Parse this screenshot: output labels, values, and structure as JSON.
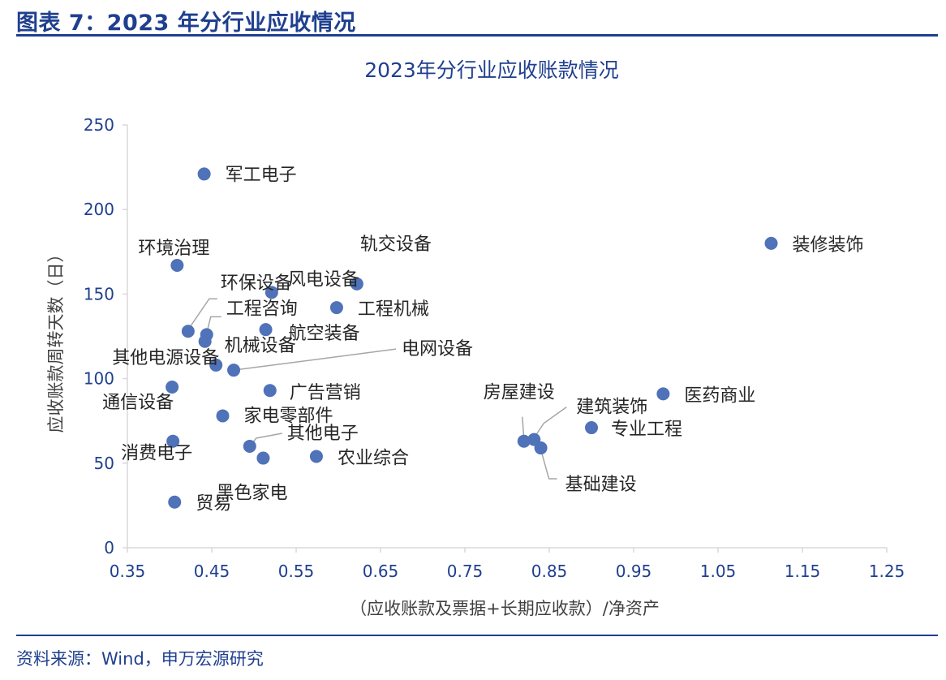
{
  "figure_title": "图表 7：2023 年分行业应收情况",
  "source": "资料来源：Wind，申万宏源研究",
  "colors": {
    "accent": "#1f3f8f",
    "marker": "#4f72b8",
    "leader": "#a6a6a6"
  },
  "chart_data": {
    "type": "scatter",
    "title": "2023年分行业应收账款情况",
    "xlabel": "（应收账款及票据+长期应收款）/净资产",
    "ylabel": "应收账款周转天数（日）",
    "xlim": [
      0.35,
      1.25
    ],
    "ylim": [
      0,
      250
    ],
    "xticks": [
      "0.35",
      "0.45",
      "0.55",
      "0.65",
      "0.75",
      "0.85",
      "0.95",
      "1.05",
      "1.15",
      "1.25"
    ],
    "yticks": [
      "0",
      "50",
      "100",
      "150",
      "200",
      "250"
    ],
    "grid": false,
    "points": [
      {
        "label": "军工电子",
        "x": 0.441,
        "y": 221
      },
      {
        "label": "装修装饰",
        "x": 1.113,
        "y": 180
      },
      {
        "label": "环境治理",
        "x": 0.409,
        "y": 167
      },
      {
        "label": "轨交设备",
        "x": 0.622,
        "y": 156
      },
      {
        "label": "风电设备",
        "x": 0.521,
        "y": 151
      },
      {
        "label": "工程机械",
        "x": 0.598,
        "y": 142
      },
      {
        "label": "环保设备",
        "x": 0.422,
        "y": 128
      },
      {
        "label": "工程咨询",
        "x": 0.444,
        "y": 126
      },
      {
        "label": "航空装备",
        "x": 0.514,
        "y": 129
      },
      {
        "label": "机械设备",
        "x": 0.442,
        "y": 122
      },
      {
        "label": "其他电源设备",
        "x": 0.455,
        "y": 108
      },
      {
        "label": "电网设备",
        "x": 0.476,
        "y": 105
      },
      {
        "label": "广告营销",
        "x": 0.519,
        "y": 93
      },
      {
        "label": "通信设备",
        "x": 0.403,
        "y": 95
      },
      {
        "label": "家电零部件",
        "x": 0.463,
        "y": 78
      },
      {
        "label": "医药商业",
        "x": 0.985,
        "y": 91
      },
      {
        "label": "专业工程",
        "x": 0.9,
        "y": 71
      },
      {
        "label": "房屋建设",
        "x": 0.82,
        "y": 63
      },
      {
        "label": "建筑装饰",
        "x": 0.832,
        "y": 64
      },
      {
        "label": "基础建设",
        "x": 0.84,
        "y": 59
      },
      {
        "label": "其他电子",
        "x": 0.495,
        "y": 60
      },
      {
        "label": "消费电子",
        "x": 0.404,
        "y": 63
      },
      {
        "label": "农业综合",
        "x": 0.574,
        "y": 54
      },
      {
        "label": "黑色家电",
        "x": 0.511,
        "y": 53
      },
      {
        "label": "贸易",
        "x": 0.406,
        "y": 27
      }
    ]
  }
}
